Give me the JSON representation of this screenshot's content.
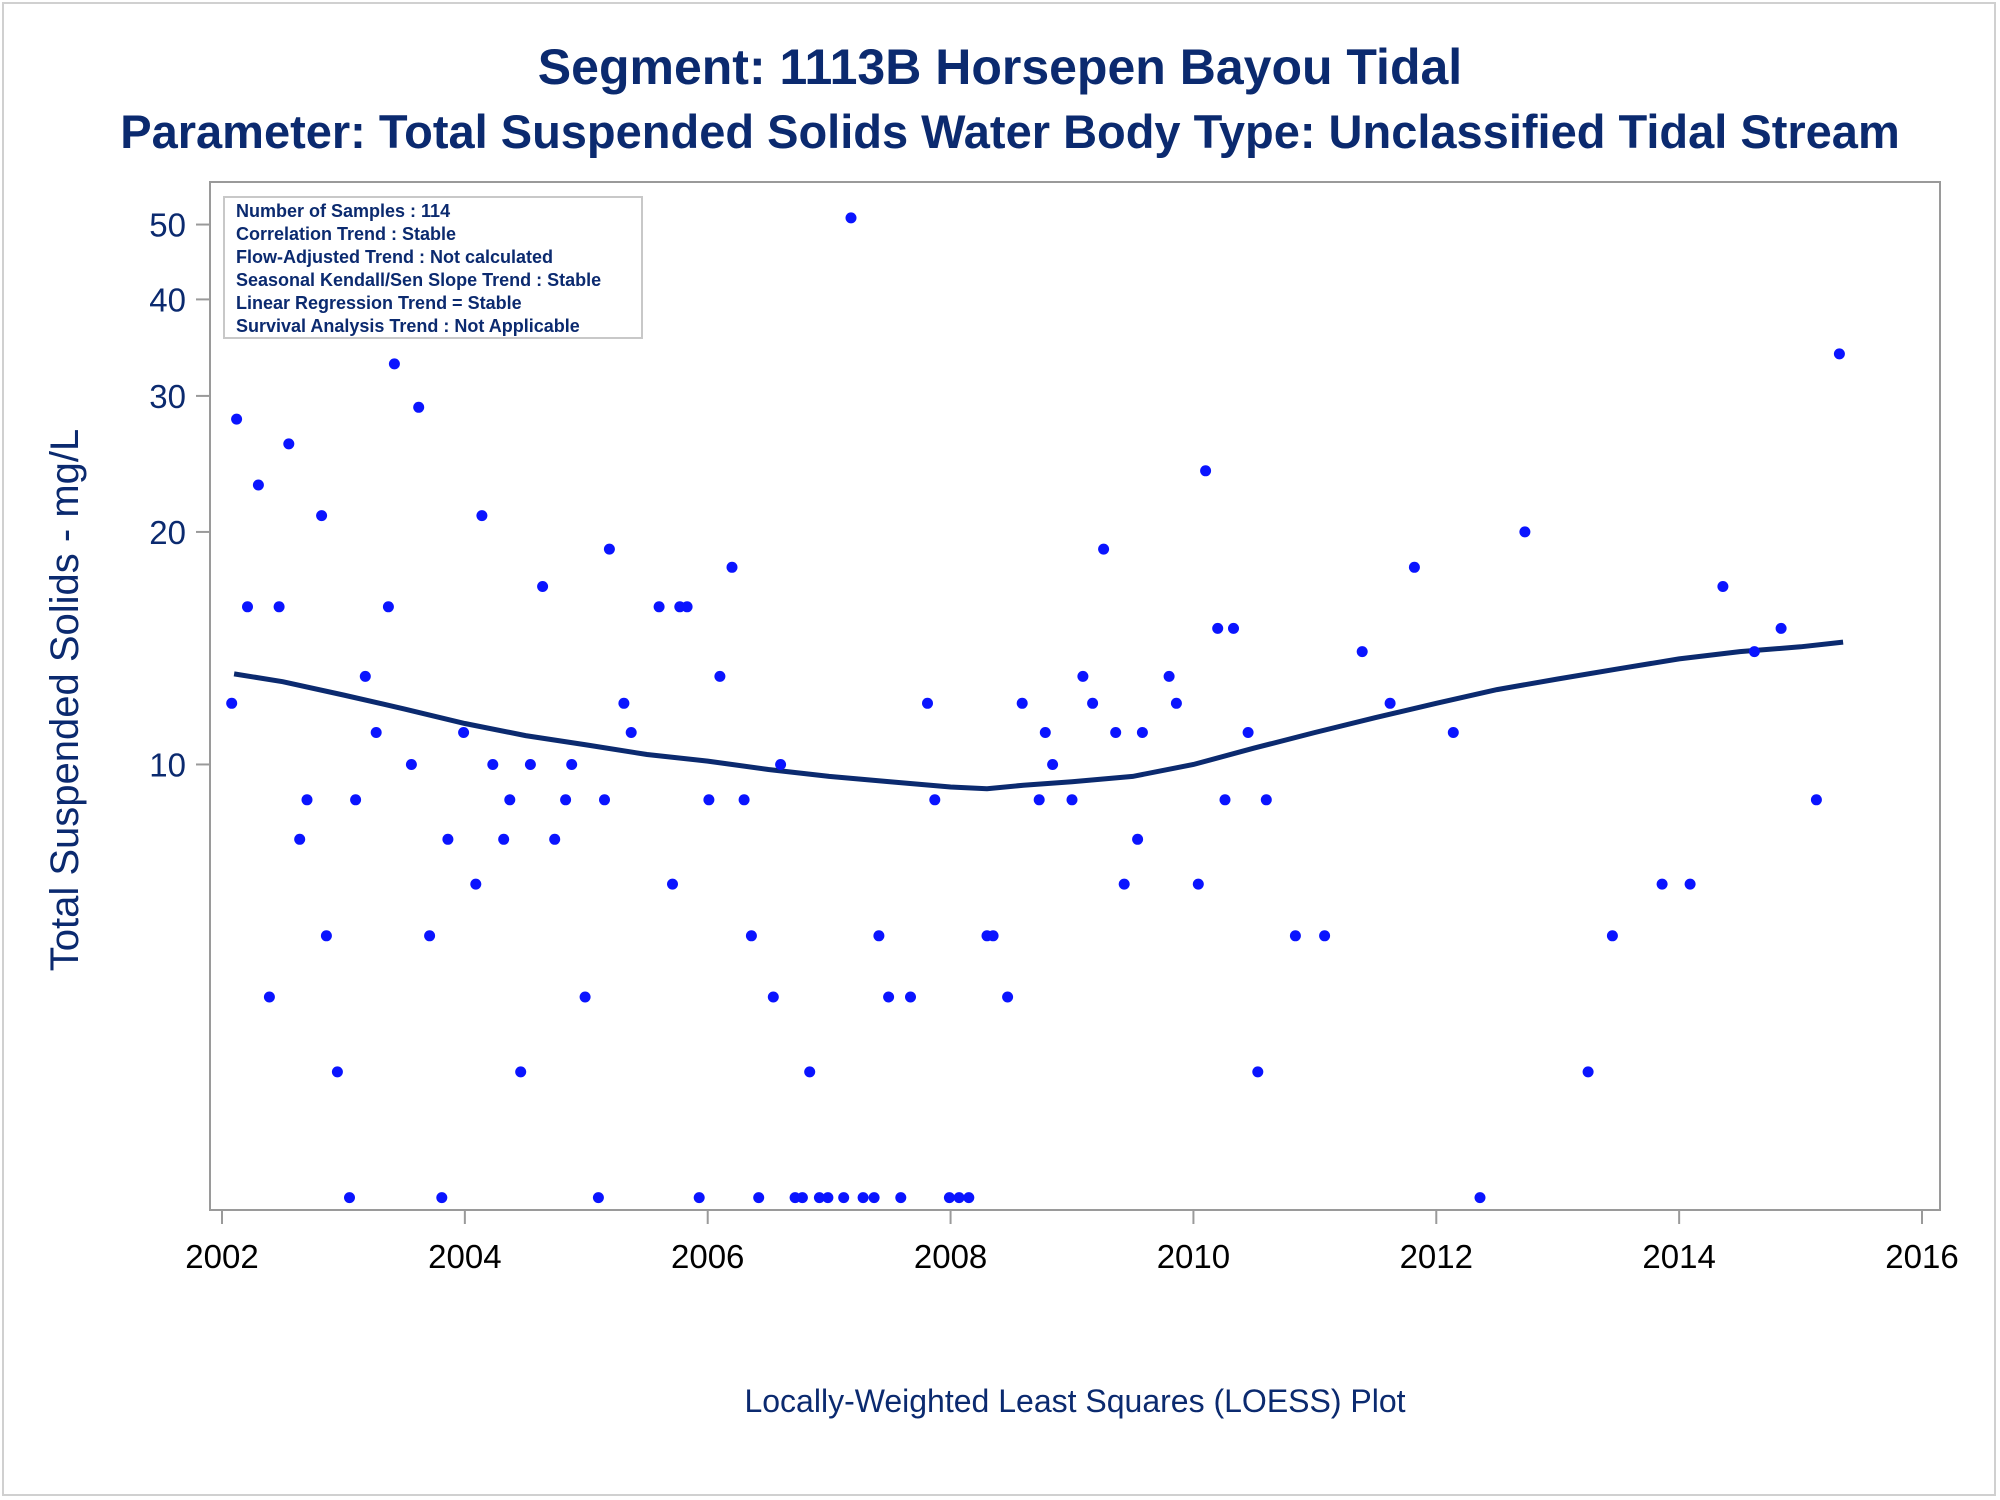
{
  "header": {
    "title": "Segment: 1113B  Horsepen Bayou Tidal",
    "subtitle": "Parameter: Total Suspended Solids   Water Body Type: Unclassified Tidal Stream"
  },
  "footer": {
    "caption": "Locally-Weighted Least Squares (LOESS) Plot"
  },
  "legend": {
    "lines": [
      "Number of Samples : 114",
      "Correlation Trend : Stable",
      "Flow-Adjusted Trend : Not calculated",
      "Seasonal Kendall/Sen Slope Trend : Stable",
      "Linear Regression Trend = Stable",
      "Survival Analysis Trend : Not Applicable"
    ]
  },
  "colors": {
    "points": "#0a14ff",
    "loess": "#0b2a6f",
    "text": "#0b2a6f",
    "axis": "#9a9a9a"
  },
  "chart_data": {
    "type": "scatter",
    "scale_y": "log",
    "ylabel": "Total Suspended Solids - mg/L",
    "xlim": [
      2002,
      2016
    ],
    "ylim": [
      2.73,
      53
    ],
    "x_ticks": [
      "2002",
      "2004",
      "2006",
      "2008",
      "2010",
      "2012",
      "2014",
      "2016"
    ],
    "y_ticks": [
      10,
      20,
      30,
      40,
      50
    ],
    "grid": false,
    "legend_position": "top-left",
    "series": [
      {
        "kind": "points",
        "points": [
          [
            2002.08,
            12
          ],
          [
            2002.12,
            28
          ],
          [
            2002.21,
            16
          ],
          [
            2002.3,
            23
          ],
          [
            2002.39,
            5
          ],
          [
            2002.47,
            16
          ],
          [
            2002.55,
            26
          ],
          [
            2002.64,
            8
          ],
          [
            2002.7,
            9
          ],
          [
            2002.82,
            21
          ],
          [
            2002.86,
            6
          ],
          [
            2002.95,
            4
          ],
          [
            2003.05,
            2.75
          ],
          [
            2003.1,
            9
          ],
          [
            2003.18,
            13
          ],
          [
            2003.27,
            11
          ],
          [
            2003.37,
            16
          ],
          [
            2003.42,
            33
          ],
          [
            2003.56,
            10
          ],
          [
            2003.62,
            29
          ],
          [
            2003.71,
            6
          ],
          [
            2003.81,
            2.75
          ],
          [
            2003.86,
            8
          ],
          [
            2003.99,
            11
          ],
          [
            2004.09,
            7
          ],
          [
            2004.14,
            21
          ],
          [
            2004.23,
            10
          ],
          [
            2004.32,
            8
          ],
          [
            2004.37,
            9
          ],
          [
            2004.46,
            4
          ],
          [
            2004.54,
            10
          ],
          [
            2004.64,
            17
          ],
          [
            2004.74,
            8
          ],
          [
            2004.83,
            9
          ],
          [
            2004.88,
            10
          ],
          [
            2004.99,
            5
          ],
          [
            2005.1,
            2.75
          ],
          [
            2005.15,
            9
          ],
          [
            2005.19,
            19
          ],
          [
            2005.31,
            12
          ],
          [
            2005.37,
            11
          ],
          [
            2005.6,
            16
          ],
          [
            2005.71,
            7
          ],
          [
            2005.77,
            16
          ],
          [
            2005.83,
            16
          ],
          [
            2005.93,
            2.75
          ],
          [
            2006.01,
            9
          ],
          [
            2006.1,
            13
          ],
          [
            2006.2,
            18
          ],
          [
            2006.3,
            9
          ],
          [
            2006.36,
            6
          ],
          [
            2006.42,
            2.75
          ],
          [
            2006.54,
            5
          ],
          [
            2006.6,
            10
          ],
          [
            2006.72,
            2.75
          ],
          [
            2006.78,
            2.75
          ],
          [
            2006.84,
            4
          ],
          [
            2006.92,
            2.75
          ],
          [
            2006.99,
            2.75
          ],
          [
            2007.12,
            2.75
          ],
          [
            2007.18,
            51
          ],
          [
            2007.28,
            2.75
          ],
          [
            2007.37,
            2.75
          ],
          [
            2007.41,
            6
          ],
          [
            2007.49,
            5
          ],
          [
            2007.59,
            2.75
          ],
          [
            2007.67,
            5
          ],
          [
            2007.81,
            12
          ],
          [
            2007.87,
            9
          ],
          [
            2007.99,
            2.75
          ],
          [
            2008.07,
            2.75
          ],
          [
            2008.15,
            2.75
          ],
          [
            2008.3,
            6
          ],
          [
            2008.35,
            6
          ],
          [
            2008.47,
            5
          ],
          [
            2008.59,
            12
          ],
          [
            2008.73,
            9
          ],
          [
            2008.78,
            11
          ],
          [
            2008.84,
            10
          ],
          [
            2009.0,
            9
          ],
          [
            2009.09,
            13
          ],
          [
            2009.17,
            12
          ],
          [
            2009.26,
            19
          ],
          [
            2009.36,
            11
          ],
          [
            2009.43,
            7
          ],
          [
            2009.54,
            8
          ],
          [
            2009.58,
            11
          ],
          [
            2009.8,
            13
          ],
          [
            2009.86,
            12
          ],
          [
            2010.04,
            7
          ],
          [
            2010.1,
            24
          ],
          [
            2010.2,
            15
          ],
          [
            2010.26,
            9
          ],
          [
            2010.33,
            15
          ],
          [
            2010.45,
            11
          ],
          [
            2010.53,
            4
          ],
          [
            2010.6,
            9
          ],
          [
            2010.84,
            6
          ],
          [
            2011.08,
            6
          ],
          [
            2011.39,
            14
          ],
          [
            2011.62,
            12
          ],
          [
            2011.82,
            18
          ],
          [
            2012.14,
            11
          ],
          [
            2012.36,
            2.75
          ],
          [
            2012.73,
            20
          ],
          [
            2013.25,
            4
          ],
          [
            2013.45,
            6
          ],
          [
            2013.86,
            7
          ],
          [
            2014.09,
            7
          ],
          [
            2014.36,
            17
          ],
          [
            2014.62,
            14
          ],
          [
            2014.84,
            15
          ],
          [
            2015.13,
            9
          ],
          [
            2015.32,
            34
          ]
        ]
      },
      {
        "kind": "loess",
        "points": [
          [
            2002.1,
            13.1
          ],
          [
            2002.5,
            12.8
          ],
          [
            2003.0,
            12.3
          ],
          [
            2003.5,
            11.8
          ],
          [
            2004.0,
            11.3
          ],
          [
            2004.5,
            10.9
          ],
          [
            2005.0,
            10.6
          ],
          [
            2005.5,
            10.3
          ],
          [
            2006.0,
            10.1
          ],
          [
            2006.5,
            9.85
          ],
          [
            2007.0,
            9.65
          ],
          [
            2007.5,
            9.5
          ],
          [
            2008.0,
            9.35
          ],
          [
            2008.3,
            9.3
          ],
          [
            2008.6,
            9.4
          ],
          [
            2009.0,
            9.5
          ],
          [
            2009.5,
            9.65
          ],
          [
            2010.0,
            10.0
          ],
          [
            2010.5,
            10.5
          ],
          [
            2011.0,
            11.0
          ],
          [
            2011.5,
            11.5
          ],
          [
            2012.0,
            12.0
          ],
          [
            2012.5,
            12.5
          ],
          [
            2013.0,
            12.9
          ],
          [
            2013.5,
            13.3
          ],
          [
            2014.0,
            13.7
          ],
          [
            2014.5,
            14.0
          ],
          [
            2015.0,
            14.2
          ],
          [
            2015.35,
            14.4
          ]
        ]
      }
    ]
  }
}
